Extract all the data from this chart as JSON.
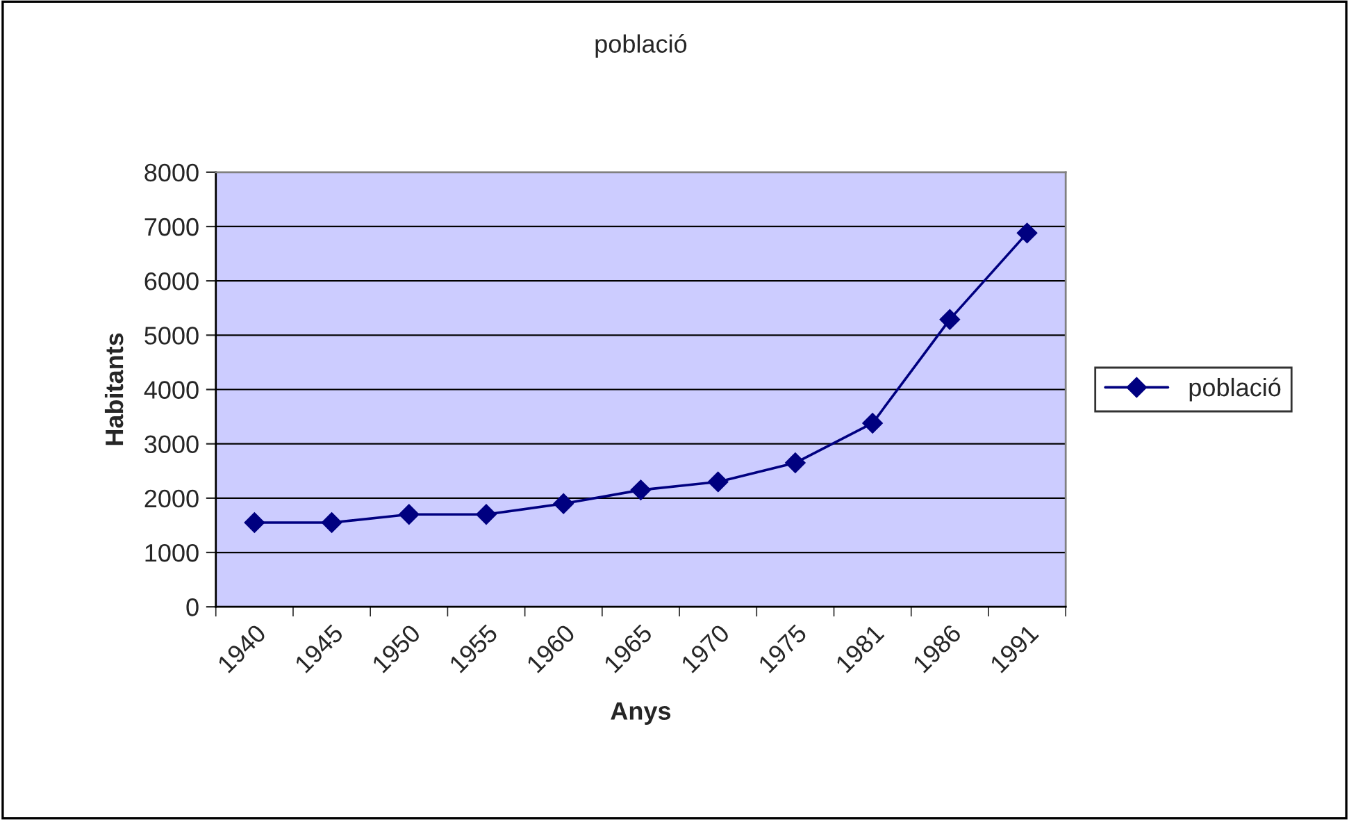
{
  "chart_data": {
    "type": "line",
    "title": "població",
    "xlabel": "Anys",
    "ylabel": "Habitants",
    "categories": [
      "1940",
      "1945",
      "1950",
      "1955",
      "1960",
      "1965",
      "1970",
      "1975",
      "1981",
      "1986",
      "1991"
    ],
    "series": [
      {
        "name": "població",
        "color": "#000080",
        "values": [
          1550,
          1550,
          1700,
          1700,
          1900,
          2150,
          2300,
          2650,
          3380,
          5290,
          6880
        ]
      }
    ],
    "ylim": [
      0,
      8000
    ],
    "yticks": [
      0,
      1000,
      2000,
      3000,
      4000,
      5000,
      6000,
      7000,
      8000
    ],
    "grid": "y",
    "legend": "right",
    "marker": "diamond",
    "line_style": "solid"
  }
}
